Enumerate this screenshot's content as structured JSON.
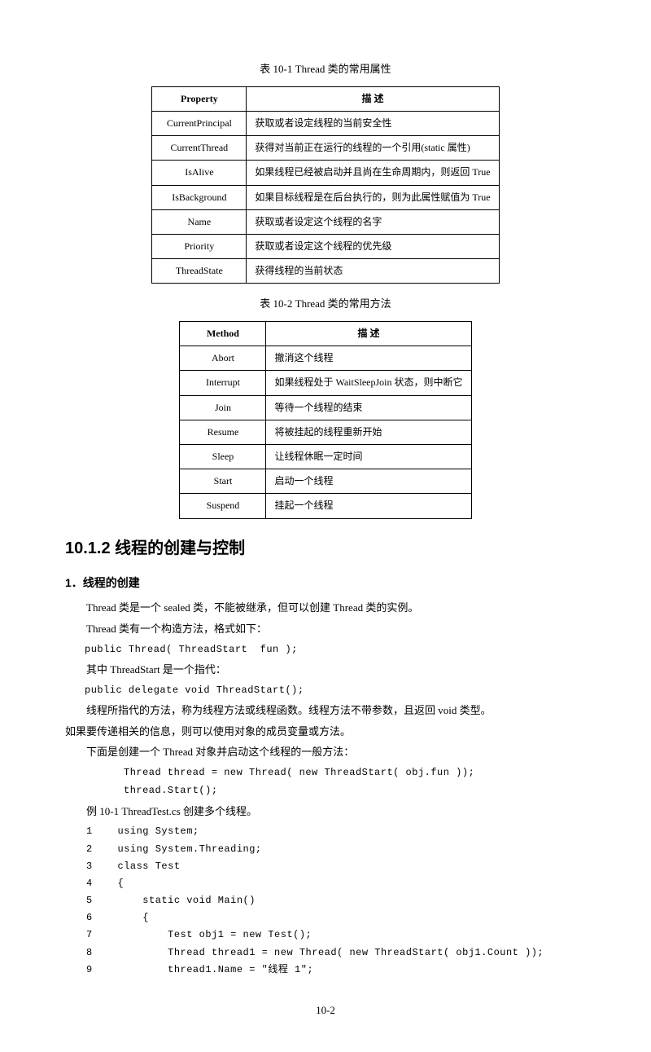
{
  "table1": {
    "caption": "表  10-1    Thread 类的常用属性",
    "header": [
      "Property",
      "描    述"
    ],
    "rows": [
      [
        "CurrentPrincipal",
        "获取或者设定线程的当前安全性"
      ],
      [
        "CurrentThread",
        "获得对当前正在运行的线程的一个引用(static 属性)"
      ],
      [
        "IsAlive",
        "如果线程已经被启动并且尚在生命周期内，则返回 True"
      ],
      [
        "IsBackground",
        "如果目标线程是在后台执行的，则为此属性赋值为 True"
      ],
      [
        "Name",
        "获取或者设定这个线程的名字"
      ],
      [
        "Priority",
        "获取或者设定这个线程的优先级"
      ],
      [
        "ThreadState",
        "获得线程的当前状态"
      ]
    ]
  },
  "table2": {
    "caption": "表  10-2    Thread 类的常用方法",
    "header": [
      "Method",
      "描    述"
    ],
    "rows": [
      [
        "Abort",
        "撤消这个线程"
      ],
      [
        "Interrupt",
        "如果线程处于 WaitSleepJoin 状态，则中断它"
      ],
      [
        "Join",
        "等待一个线程的结束"
      ],
      [
        "Resume",
        "将被挂起的线程重新开始"
      ],
      [
        "Sleep",
        "让线程休眠一定时间"
      ],
      [
        "Start",
        "启动一个线程"
      ],
      [
        "Suspend",
        "挂起一个线程"
      ]
    ]
  },
  "section": {
    "heading": "10.1.2    线程的创建与控制",
    "sub1": "1．线程的创建",
    "p1": "Thread 类是一个 sealed 类，不能被继承，但可以创建 Thread 类的实例。",
    "p2": "Thread 类有一个构造方法，格式如下：",
    "code1": "public Thread( ThreadStart  fun );",
    "p3": "其中 ThreadStart 是一个指代：",
    "code2": "public delegate void ThreadStart();",
    "p4": "线程所指代的方法，称为线程方法或线程函数。线程方法不带参数，且返回 void 类型。",
    "p4b": "如果要传递相关的信息，则可以使用对象的成员变量或方法。",
    "p5": "下面是创建一个 Thread 对象并启动这个线程的一般方法：",
    "code3a": "Thread thread = new Thread( new ThreadStart( obj.fun ));",
    "code3b": "thread.Start();",
    "example_label": "例  10-1    ThreadTest.cs  创建多个线程。",
    "code_lines": [
      "1    using System;",
      "2    using System.Threading;",
      "3    class Test",
      "4    {",
      "5        static void Main()",
      "6        {",
      "7            Test obj1 = new Test();",
      "8            Thread thread1 = new Thread( new ThreadStart( obj1.Count ));",
      "9            thread1.Name = \"线程 1\";"
    ]
  },
  "page_number": "10-2"
}
